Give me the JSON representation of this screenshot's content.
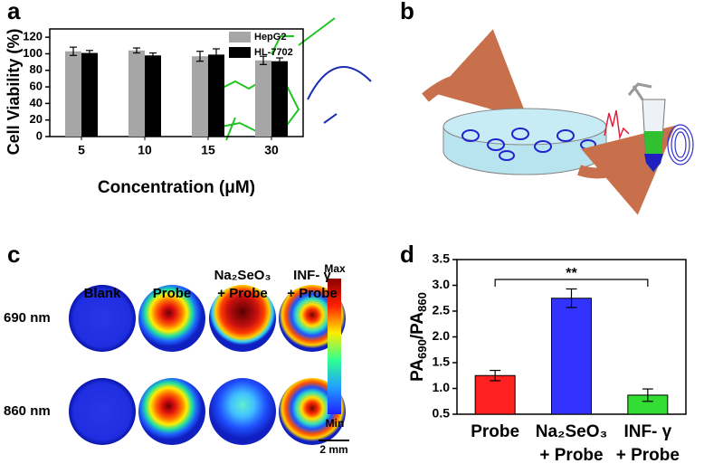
{
  "panel_labels": [
    "a",
    "b",
    "c",
    "d"
  ],
  "chart_data": [
    {
      "type": "grouped-bar",
      "ylabel": "Cell Viability (%)",
      "xlabel": "Concentration (μM)",
      "categories": [
        "5",
        "10",
        "15",
        "30"
      ],
      "series": [
        {
          "name": "HepG2",
          "color": "#a6a6a6",
          "values": [
            103,
            104,
            97,
            92
          ],
          "errors": [
            5,
            3,
            6,
            5
          ]
        },
        {
          "name": "HL-7702",
          "color": "#000000",
          "values": [
            101,
            98,
            99,
            91
          ],
          "errors": [
            3,
            3,
            7,
            4
          ]
        }
      ],
      "ylim": [
        0,
        130
      ],
      "yticks": [
        0,
        20,
        40,
        60,
        80,
        100,
        120
      ],
      "legend": "top-right"
    },
    {
      "type": "bar",
      "ylabel": [
        "PA",
        "690",
        "/PA",
        "860"
      ],
      "categories": [
        [
          "Probe"
        ],
        [
          "Na₂SeO₃",
          "+ Probe"
        ],
        [
          "INF- γ",
          "+ Probe"
        ]
      ],
      "values": [
        1.25,
        2.75,
        0.87
      ],
      "errors": [
        0.1,
        0.18,
        0.12
      ],
      "colors": [
        "#ff2020",
        "#3333ff",
        "#33dd33"
      ],
      "ylim": [
        0.5,
        3.5
      ],
      "yticks": [
        0.5,
        {
          "value": 1,
          "label": "1.0"
        },
        1.5,
        {
          "value": 2,
          "label": "2.0"
        },
        2.5,
        {
          "value": 3,
          "label": "3.0"
        },
        3.5
      ],
      "annotation": "**"
    }
  ],
  "panel_c": {
    "columns": [
      [
        "Blank"
      ],
      [
        "Probe"
      ],
      [
        "Na₂SeO₃",
        "+ Probe"
      ],
      [
        "INF- γ",
        "+ Probe"
      ]
    ],
    "rows": [
      "690 nm",
      "860 nm"
    ],
    "colorbar_max": "Max",
    "colorbar_min": "Min",
    "scale_bar": "2 mm"
  }
}
